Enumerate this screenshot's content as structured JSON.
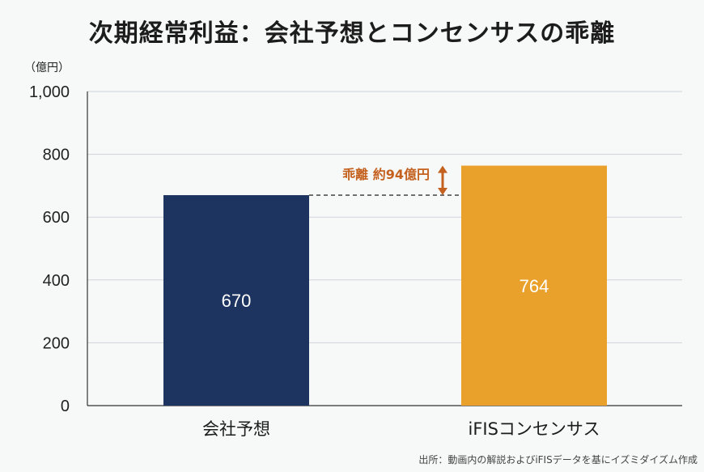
{
  "chart_data": {
    "type": "bar",
    "title": "次期経常利益：会社予想とコンセンサスの乖離",
    "ylabel": "（億円）",
    "categories": [
      "会社予想",
      "iFISコンセンサス"
    ],
    "values": [
      670,
      764
    ],
    "value_labels": [
      "670",
      "764"
    ],
    "colors": [
      "#1d3461",
      "#e9a12c"
    ],
    "ylim": [
      0,
      1000
    ],
    "yticks": [
      0,
      200,
      400,
      600,
      800,
      1000
    ],
    "ytick_labels": [
      "0",
      "200",
      "400",
      "600",
      "800",
      "1,000"
    ],
    "grid": true,
    "annotation": {
      "text": "乖離 約94億円",
      "color": "#c4611e",
      "from_value": 670,
      "to_value": 764
    },
    "source": "出所：動画内の解説およびiFISデータを基にイズミダイズム作成"
  }
}
